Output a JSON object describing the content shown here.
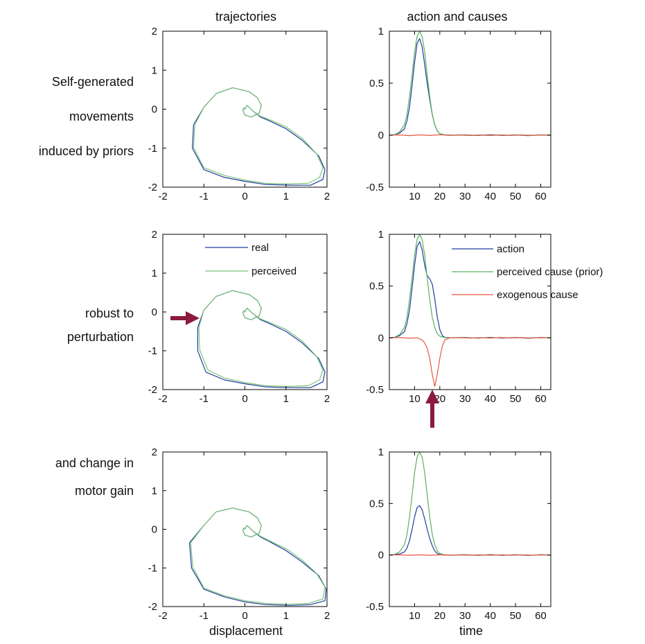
{
  "column_titles": [
    "trajectories",
    "action and causes"
  ],
  "row_labels": [
    [
      "Self-generated",
      "movements",
      "induced by priors"
    ],
    [
      "robust to",
      "perturbation"
    ],
    [
      "and change in",
      "motor gain"
    ]
  ],
  "x_labels": {
    "trajectories": "displacement",
    "causes": "time"
  },
  "legend_trajectories": [
    {
      "label": "real",
      "color": "#1f3c9e"
    },
    {
      "label": "perceived",
      "color": "#7cc47a"
    }
  ],
  "legend_causes": [
    {
      "label": "action",
      "color": "#1f3c9e"
    },
    {
      "label": "perceived cause (prior)",
      "color": "#5bb05b"
    },
    {
      "label": "exogenous cause",
      "color": "#e8553f"
    }
  ],
  "colors": {
    "real": "#1f3c9e",
    "perceived": "#7cc47a",
    "action": "#1f3c9e",
    "prior": "#5bb05b",
    "exogenous": "#e8553f",
    "arrow": "#8b1a3c"
  },
  "chart_data": [
    {
      "type": "line",
      "panel": "trajectory",
      "row": 1,
      "xlim": [
        -2,
        2
      ],
      "ylim": [
        -2,
        2
      ],
      "xticks": [
        "-2",
        "-1",
        "0",
        "1",
        "2"
      ],
      "yticks": [
        "-2",
        "-1",
        "0",
        "1",
        "2"
      ],
      "series": [
        {
          "name": "real",
          "x": [
            -0.01,
            0.05,
            0.1,
            0.2,
            0.38,
            0.6,
            1.0,
            1.4,
            1.8,
            1.95,
            1.9,
            1.6,
            1.1,
            0.5,
            0.0,
            -0.5,
            -1.0,
            -1.28,
            -1.25,
            -1.0,
            -0.7,
            -0.3,
            0.1,
            0.3,
            0.4,
            0.35,
            0.15,
            0.0,
            -0.05,
            -0.03,
            0.02
          ],
          "y": [
            -0.01,
            0.1,
            0.05,
            -0.05,
            -0.2,
            -0.3,
            -0.5,
            -0.8,
            -1.2,
            -1.55,
            -1.8,
            -1.95,
            -1.95,
            -1.93,
            -1.85,
            -1.75,
            -1.55,
            -1.0,
            -0.4,
            0.05,
            0.4,
            0.55,
            0.45,
            0.3,
            0.1,
            -0.1,
            -0.2,
            -0.15,
            -0.02,
            0.03,
            0.02
          ]
        },
        {
          "name": "perceived",
          "x": [
            -0.01,
            0.05,
            0.1,
            0.2,
            0.38,
            0.6,
            1.0,
            1.4,
            1.75,
            1.9,
            1.82,
            1.55,
            1.05,
            0.5,
            0.0,
            -0.5,
            -1.0,
            -1.25,
            -1.22,
            -1.0,
            -0.7,
            -0.3,
            0.1,
            0.3,
            0.4,
            0.35,
            0.15,
            0.0,
            -0.05,
            -0.03,
            0.02
          ],
          "y": [
            -0.01,
            0.1,
            0.05,
            -0.05,
            -0.18,
            -0.27,
            -0.45,
            -0.75,
            -1.15,
            -1.5,
            -1.75,
            -1.9,
            -1.92,
            -1.9,
            -1.82,
            -1.7,
            -1.5,
            -0.98,
            -0.4,
            0.05,
            0.4,
            0.55,
            0.45,
            0.3,
            0.1,
            -0.1,
            -0.2,
            -0.15,
            -0.02,
            0.03,
            0.02
          ]
        }
      ]
    },
    {
      "type": "line",
      "panel": "causes",
      "row": 1,
      "xlim": [
        0,
        64
      ],
      "ylim": [
        -0.5,
        1
      ],
      "xticks": [
        "10",
        "20",
        "30",
        "40",
        "50",
        "60"
      ],
      "yticks": [
        "-0.5",
        "0",
        "0.5",
        "1"
      ],
      "series": [
        {
          "name": "action",
          "x": [
            0,
            2,
            4,
            6,
            7,
            8,
            9,
            10,
            11,
            12,
            13,
            14,
            15,
            16,
            17,
            18,
            19,
            20,
            22,
            25,
            30,
            35,
            40,
            45,
            50,
            55,
            60,
            64
          ],
          "y": [
            0.0,
            0.005,
            0.02,
            0.06,
            0.14,
            0.27,
            0.48,
            0.7,
            0.88,
            0.93,
            0.85,
            0.68,
            0.5,
            0.34,
            0.2,
            0.1,
            0.04,
            0.015,
            0.003,
            0.0,
            0.003,
            -0.003,
            0.004,
            -0.003,
            0.003,
            -0.004,
            0.003,
            0.0
          ]
        },
        {
          "name": "perceived cause (prior)",
          "x": [
            0,
            2,
            4,
            6,
            7,
            8,
            9,
            10,
            11,
            12,
            13,
            14,
            15,
            16,
            17,
            18,
            19,
            20,
            22,
            25,
            30,
            35,
            40,
            45,
            50,
            55,
            60,
            64
          ],
          "y": [
            0.0,
            0.005,
            0.03,
            0.1,
            0.2,
            0.37,
            0.58,
            0.8,
            0.95,
            1.0,
            0.95,
            0.8,
            0.58,
            0.37,
            0.2,
            0.1,
            0.04,
            0.015,
            0.002,
            0.0,
            0.0,
            0.0,
            0.0,
            0.0,
            0.0,
            0.0,
            0.0,
            0.0
          ]
        },
        {
          "name": "exogenous cause",
          "x": [
            0,
            4,
            8,
            12,
            16,
            20,
            24,
            28,
            32,
            36,
            40,
            44,
            48,
            52,
            56,
            60,
            64
          ],
          "y": [
            0.0,
            0.003,
            -0.004,
            0.003,
            -0.003,
            0.004,
            -0.002,
            0.003,
            -0.003,
            0.002,
            -0.003,
            0.003,
            -0.002,
            0.003,
            -0.003,
            0.002,
            0.0
          ]
        }
      ]
    },
    {
      "type": "line",
      "panel": "trajectory",
      "row": 2,
      "xlim": [
        -2,
        2
      ],
      "ylim": [
        -2,
        2
      ],
      "xticks": [
        "-2",
        "-1",
        "0",
        "1",
        "2"
      ],
      "yticks": [
        "-2",
        "-1",
        "0",
        "1",
        "2"
      ],
      "series": [
        {
          "name": "real",
          "x": [
            -0.01,
            0.05,
            0.1,
            0.2,
            0.38,
            0.6,
            1.0,
            1.4,
            1.8,
            1.95,
            1.9,
            1.6,
            1.1,
            0.5,
            0.0,
            -0.5,
            -0.95,
            -1.15,
            -1.15,
            -1.0,
            -0.7,
            -0.3,
            0.1,
            0.3,
            0.4,
            0.35,
            0.15,
            0.0,
            -0.05,
            -0.03,
            0.02
          ],
          "y": [
            -0.01,
            0.1,
            0.05,
            -0.05,
            -0.2,
            -0.3,
            -0.5,
            -0.8,
            -1.2,
            -1.55,
            -1.8,
            -1.95,
            -1.95,
            -1.93,
            -1.85,
            -1.75,
            -1.55,
            -1.0,
            -0.4,
            0.05,
            0.4,
            0.55,
            0.45,
            0.3,
            0.1,
            -0.1,
            -0.2,
            -0.15,
            -0.02,
            0.03,
            0.02
          ]
        },
        {
          "name": "perceived",
          "x": [
            -0.01,
            0.05,
            0.1,
            0.2,
            0.38,
            0.6,
            1.0,
            1.4,
            1.75,
            1.9,
            1.82,
            1.55,
            1.05,
            0.5,
            0.0,
            -0.5,
            -0.9,
            -1.1,
            -1.12,
            -1.0,
            -0.7,
            -0.3,
            0.1,
            0.3,
            0.4,
            0.35,
            0.15,
            0.0,
            -0.05,
            -0.03,
            0.02
          ],
          "y": [
            -0.01,
            0.1,
            0.05,
            -0.05,
            -0.18,
            -0.27,
            -0.45,
            -0.75,
            -1.15,
            -1.5,
            -1.75,
            -1.9,
            -1.92,
            -1.9,
            -1.82,
            -1.7,
            -1.5,
            -0.98,
            -0.4,
            0.05,
            0.4,
            0.55,
            0.45,
            0.3,
            0.1,
            -0.1,
            -0.2,
            -0.15,
            -0.02,
            0.03,
            0.02
          ]
        }
      ]
    },
    {
      "type": "line",
      "panel": "causes",
      "row": 2,
      "xlim": [
        0,
        64
      ],
      "ylim": [
        -0.5,
        1
      ],
      "xticks": [
        "10",
        "20",
        "30",
        "40",
        "50",
        "60"
      ],
      "yticks": [
        "-0.5",
        "0",
        "0.5",
        "1"
      ],
      "series": [
        {
          "name": "action",
          "x": [
            0,
            2,
            4,
            6,
            7,
            8,
            9,
            10,
            11,
            12,
            13,
            14,
            15,
            16,
            17,
            18,
            19,
            20,
            21,
            22,
            25,
            30,
            35,
            40,
            45,
            50,
            55,
            60,
            64
          ],
          "y": [
            0.0,
            0.005,
            0.02,
            0.06,
            0.14,
            0.27,
            0.48,
            0.7,
            0.88,
            0.93,
            0.85,
            0.7,
            0.6,
            0.57,
            0.52,
            0.38,
            0.2,
            0.08,
            0.02,
            0.005,
            0.0,
            0.003,
            -0.003,
            0.004,
            -0.003,
            0.003,
            -0.004,
            0.003,
            0.0
          ]
        },
        {
          "name": "perceived cause (prior)",
          "x": [
            0,
            2,
            4,
            6,
            7,
            8,
            9,
            10,
            11,
            12,
            13,
            14,
            15,
            16,
            17,
            18,
            19,
            20,
            22,
            25,
            30,
            35,
            40,
            45,
            50,
            55,
            60,
            64
          ],
          "y": [
            0.0,
            0.005,
            0.03,
            0.1,
            0.2,
            0.37,
            0.58,
            0.8,
            0.95,
            1.0,
            0.95,
            0.8,
            0.58,
            0.37,
            0.2,
            0.1,
            0.04,
            0.015,
            0.002,
            0.0,
            0.0,
            0.0,
            0.0,
            0.0,
            0.0,
            0.0,
            0.0,
            0.0
          ]
        },
        {
          "name": "exogenous cause",
          "x": [
            0,
            4,
            8,
            11,
            12,
            13,
            14,
            15,
            16,
            17,
            18,
            19,
            20,
            21,
            22,
            24,
            28,
            32,
            36,
            40,
            44,
            48,
            52,
            56,
            60,
            64
          ],
          "y": [
            0.0,
            0.003,
            -0.004,
            0.0,
            -0.01,
            -0.02,
            -0.05,
            -0.1,
            -0.2,
            -0.35,
            -0.47,
            -0.35,
            -0.2,
            -0.08,
            -0.02,
            0.0,
            0.003,
            -0.003,
            0.002,
            -0.003,
            0.003,
            -0.002,
            0.003,
            -0.003,
            0.002,
            0.0
          ]
        }
      ]
    },
    {
      "type": "line",
      "panel": "trajectory",
      "row": 3,
      "xlim": [
        -2,
        2
      ],
      "ylim": [
        -2,
        2
      ],
      "xticks": [
        "-2",
        "-1",
        "0",
        "1",
        "2"
      ],
      "yticks": [
        "-2",
        "-1",
        "0",
        "1",
        "2"
      ],
      "series": [
        {
          "name": "real",
          "x": [
            -0.01,
            0.05,
            0.1,
            0.2,
            0.38,
            0.6,
            1.0,
            1.4,
            1.8,
            1.98,
            1.95,
            1.6,
            1.1,
            0.5,
            0.0,
            -0.5,
            -1.0,
            -1.3,
            -1.35,
            -1.0,
            -0.7,
            -0.3,
            0.1,
            0.3,
            0.4,
            0.35,
            0.15,
            0.0,
            -0.05,
            -0.03,
            0.02
          ],
          "y": [
            -0.01,
            0.1,
            0.05,
            -0.05,
            -0.2,
            -0.32,
            -0.55,
            -0.85,
            -1.2,
            -1.55,
            -1.85,
            -1.95,
            -1.97,
            -1.95,
            -1.88,
            -1.75,
            -1.55,
            -1.0,
            -0.35,
            0.1,
            0.45,
            0.55,
            0.45,
            0.3,
            0.1,
            -0.1,
            -0.2,
            -0.15,
            -0.02,
            0.03,
            0.02
          ]
        },
        {
          "name": "perceived",
          "x": [
            -0.01,
            0.05,
            0.1,
            0.2,
            0.38,
            0.6,
            1.0,
            1.4,
            1.75,
            1.95,
            1.9,
            1.55,
            1.05,
            0.5,
            0.0,
            -0.5,
            -1.0,
            -1.27,
            -1.32,
            -1.0,
            -0.7,
            -0.3,
            0.1,
            0.3,
            0.4,
            0.35,
            0.15,
            0.0,
            -0.05,
            -0.03,
            0.02
          ],
          "y": [
            -0.01,
            0.1,
            0.05,
            -0.05,
            -0.18,
            -0.3,
            -0.5,
            -0.8,
            -1.15,
            -1.5,
            -1.8,
            -1.92,
            -1.94,
            -1.92,
            -1.85,
            -1.72,
            -1.52,
            -0.98,
            -0.35,
            0.1,
            0.45,
            0.55,
            0.45,
            0.3,
            0.1,
            -0.1,
            -0.2,
            -0.15,
            -0.02,
            0.03,
            0.02
          ]
        }
      ]
    },
    {
      "type": "line",
      "panel": "causes",
      "row": 3,
      "xlim": [
        0,
        64
      ],
      "ylim": [
        -0.5,
        1
      ],
      "xticks": [
        "10",
        "20",
        "30",
        "40",
        "50",
        "60"
      ],
      "yticks": [
        "-0.5",
        "0",
        "0.5",
        "1"
      ],
      "series": [
        {
          "name": "action",
          "x": [
            0,
            2,
            4,
            6,
            7,
            8,
            9,
            10,
            11,
            12,
            13,
            14,
            15,
            16,
            17,
            18,
            19,
            20,
            22,
            25,
            30,
            35,
            40,
            45,
            50,
            55,
            60,
            64
          ],
          "y": [
            0.0,
            0.005,
            0.01,
            0.03,
            0.07,
            0.14,
            0.25,
            0.37,
            0.46,
            0.48,
            0.44,
            0.35,
            0.25,
            0.16,
            0.09,
            0.04,
            0.015,
            0.005,
            0.0,
            0.0,
            0.003,
            -0.003,
            0.004,
            -0.003,
            0.003,
            -0.004,
            0.003,
            0.0
          ]
        },
        {
          "name": "perceived cause (prior)",
          "x": [
            0,
            2,
            4,
            6,
            7,
            8,
            9,
            10,
            11,
            12,
            13,
            14,
            15,
            16,
            17,
            18,
            19,
            20,
            22,
            25,
            30,
            35,
            40,
            45,
            50,
            55,
            60,
            64
          ],
          "y": [
            0.0,
            0.005,
            0.03,
            0.1,
            0.2,
            0.37,
            0.58,
            0.8,
            0.95,
            1.0,
            0.95,
            0.8,
            0.58,
            0.37,
            0.2,
            0.1,
            0.04,
            0.015,
            0.002,
            0.0,
            0.0,
            0.0,
            0.0,
            0.0,
            0.0,
            0.0,
            0.0,
            0.0
          ]
        },
        {
          "name": "exogenous cause",
          "x": [
            0,
            4,
            8,
            12,
            16,
            20,
            24,
            28,
            32,
            36,
            40,
            44,
            48,
            52,
            56,
            60,
            64
          ],
          "y": [
            0.0,
            0.002,
            -0.002,
            0.002,
            -0.002,
            0.002,
            -0.002,
            0.002,
            -0.002,
            0.002,
            -0.002,
            0.002,
            -0.002,
            0.002,
            -0.002,
            0.002,
            0.0
          ]
        }
      ]
    }
  ]
}
